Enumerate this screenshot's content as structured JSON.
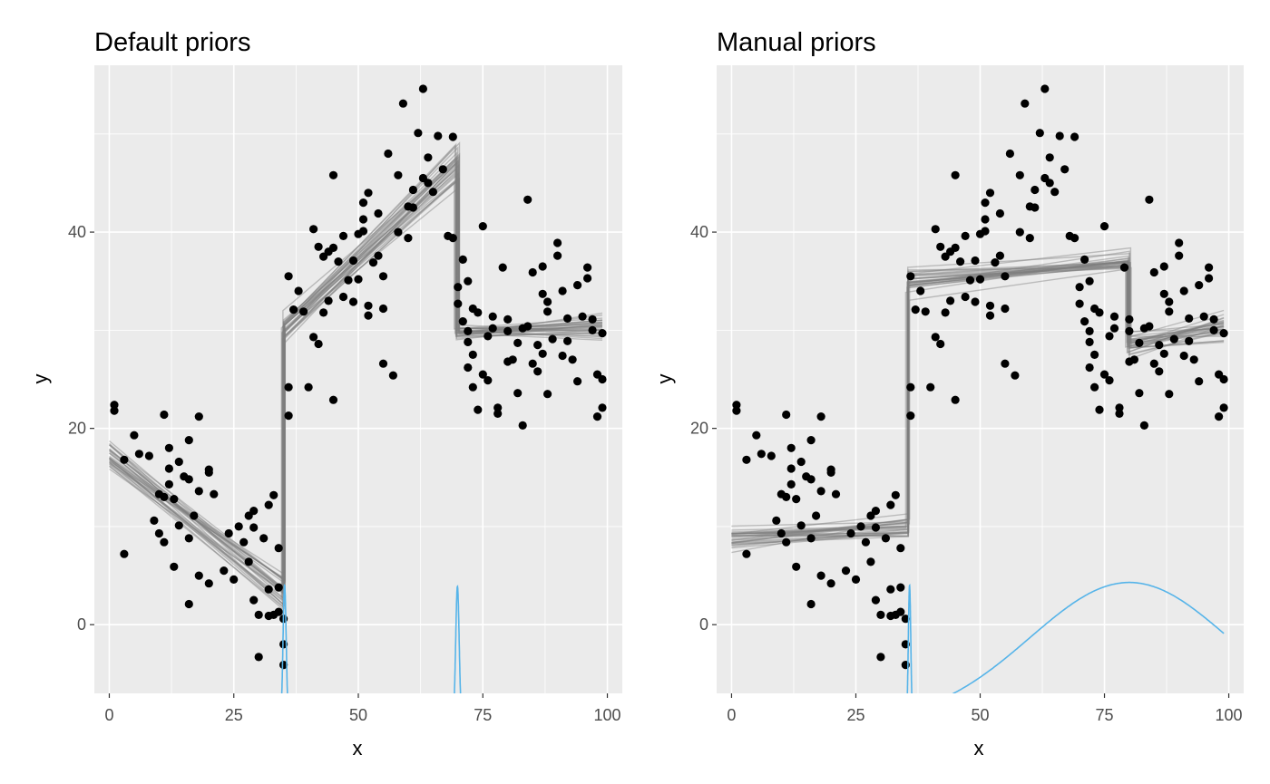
{
  "chart_data": [
    {
      "type": "scatter",
      "title": "Default priors",
      "xlabel": "x",
      "ylabel": "y",
      "xlim": [
        -3,
        103
      ],
      "ylim": [
        -7,
        57
      ],
      "x_ticks": [
        0,
        25,
        50,
        75,
        100
      ],
      "y_ticks": [
        0,
        20,
        40
      ],
      "x_tick_labels": [
        "0",
        "25",
        "50",
        "75",
        "100"
      ],
      "y_tick_labels": [
        "0",
        "20",
        "40"
      ],
      "grid": true,
      "colors": {
        "panel_bg": "#EBEBEB",
        "grid": "#FFFFFF",
        "points": "#000000",
        "fits": "#7F7F7F",
        "density": "#56B4E9"
      },
      "points": [
        [
          1,
          22.4
        ],
        [
          1,
          21.8
        ],
        [
          3,
          16.8
        ],
        [
          3,
          7.2
        ],
        [
          5,
          19.3
        ],
        [
          6,
          17.4
        ],
        [
          8,
          17.2
        ],
        [
          9,
          10.6
        ],
        [
          10,
          9.3
        ],
        [
          10,
          13.3
        ],
        [
          11,
          21.4
        ],
        [
          11,
          8.4
        ],
        [
          11,
          13.0
        ],
        [
          12,
          15.9
        ],
        [
          12,
          18.0
        ],
        [
          12,
          14.3
        ],
        [
          13,
          5.9
        ],
        [
          13,
          12.8
        ],
        [
          14,
          16.6
        ],
        [
          14,
          10.1
        ],
        [
          15,
          15.1
        ],
        [
          16,
          14.8
        ],
        [
          16,
          18.8
        ],
        [
          16,
          8.8
        ],
        [
          16,
          2.1
        ],
        [
          17,
          11.1
        ],
        [
          18,
          5.0
        ],
        [
          18,
          21.2
        ],
        [
          18,
          13.6
        ],
        [
          20,
          15.8
        ],
        [
          20,
          15.5
        ],
        [
          20,
          4.2
        ],
        [
          21,
          13.3
        ],
        [
          23,
          5.5
        ],
        [
          24,
          9.3
        ],
        [
          25,
          4.6
        ],
        [
          26,
          10.0
        ],
        [
          27,
          8.4
        ],
        [
          28,
          6.4
        ],
        [
          28,
          11.1
        ],
        [
          29,
          9.9
        ],
        [
          29,
          11.6
        ],
        [
          29,
          2.5
        ],
        [
          30,
          -3.3
        ],
        [
          30,
          1.0
        ],
        [
          31,
          8.8
        ],
        [
          32,
          12.2
        ],
        [
          32,
          0.9
        ],
        [
          32,
          3.6
        ],
        [
          33,
          13.2
        ],
        [
          33,
          1.0
        ],
        [
          34,
          7.8
        ],
        [
          34,
          3.8
        ],
        [
          34,
          1.3
        ],
        [
          35,
          -2.0
        ],
        [
          35,
          -4.1
        ],
        [
          35,
          0.6
        ],
        [
          36,
          24.2
        ],
        [
          36,
          21.3
        ],
        [
          36,
          35.5
        ],
        [
          37,
          32.1
        ],
        [
          38,
          34.0
        ],
        [
          39,
          31.9
        ],
        [
          40,
          24.2
        ],
        [
          41,
          29.3
        ],
        [
          41,
          40.3
        ],
        [
          42,
          28.6
        ],
        [
          42,
          38.5
        ],
        [
          43,
          31.8
        ],
        [
          43,
          37.5
        ],
        [
          44,
          38.0
        ],
        [
          44,
          33.0
        ],
        [
          45,
          45.8
        ],
        [
          45,
          22.9
        ],
        [
          45,
          38.4
        ],
        [
          46,
          37.0
        ],
        [
          47,
          39.6
        ],
        [
          47,
          33.4
        ],
        [
          48,
          35.1
        ],
        [
          49,
          32.9
        ],
        [
          49,
          37.1
        ],
        [
          50,
          35.2
        ],
        [
          50,
          39.8
        ],
        [
          51,
          41.3
        ],
        [
          51,
          43.0
        ],
        [
          51,
          40.1
        ],
        [
          52,
          44.0
        ],
        [
          52,
          32.5
        ],
        [
          52,
          31.5
        ],
        [
          53,
          36.9
        ],
        [
          54,
          37.6
        ],
        [
          54,
          41.9
        ],
        [
          55,
          35.5
        ],
        [
          55,
          32.2
        ],
        [
          55,
          26.6
        ],
        [
          56,
          48.0
        ],
        [
          57,
          25.4
        ],
        [
          58,
          40.0
        ],
        [
          58,
          45.8
        ],
        [
          59,
          53.1
        ],
        [
          60,
          42.6
        ],
        [
          60,
          39.4
        ],
        [
          61,
          44.3
        ],
        [
          61,
          42.5
        ],
        [
          62,
          50.1
        ],
        [
          63,
          54.6
        ],
        [
          63,
          45.5
        ],
        [
          64,
          45.0
        ],
        [
          64,
          47.6
        ],
        [
          65,
          44.1
        ],
        [
          66,
          49.8
        ],
        [
          67,
          46.4
        ],
        [
          68,
          39.6
        ],
        [
          69,
          39.4
        ],
        [
          69,
          49.7
        ],
        [
          70,
          34.4
        ],
        [
          70,
          32.7
        ],
        [
          71,
          37.2
        ],
        [
          71,
          30.9
        ],
        [
          72,
          35.0
        ],
        [
          72,
          26.2
        ],
        [
          72,
          29.9
        ],
        [
          72,
          28.8
        ],
        [
          73,
          32.2
        ],
        [
          73,
          24.2
        ],
        [
          73,
          27.5
        ],
        [
          74,
          21.9
        ],
        [
          74,
          31.8
        ],
        [
          75,
          40.6
        ],
        [
          75,
          25.5
        ],
        [
          76,
          24.9
        ],
        [
          76,
          29.4
        ],
        [
          77,
          30.2
        ],
        [
          77,
          31.4
        ],
        [
          78,
          22.1
        ],
        [
          78,
          21.5
        ],
        [
          79,
          36.4
        ],
        [
          80,
          26.8
        ],
        [
          80,
          29.9
        ],
        [
          80,
          31.1
        ],
        [
          81,
          27.0
        ],
        [
          82,
          28.7
        ],
        [
          82,
          23.6
        ],
        [
          83,
          30.2
        ],
        [
          83,
          20.3
        ],
        [
          84,
          30.4
        ],
        [
          84,
          43.3
        ],
        [
          85,
          35.9
        ],
        [
          85,
          26.6
        ],
        [
          86,
          28.5
        ],
        [
          86,
          25.8
        ],
        [
          87,
          27.6
        ],
        [
          87,
          33.7
        ],
        [
          87,
          36.5
        ],
        [
          88,
          32.9
        ],
        [
          88,
          31.9
        ],
        [
          88,
          23.5
        ],
        [
          89,
          29.1
        ],
        [
          90,
          38.9
        ],
        [
          90,
          37.6
        ],
        [
          91,
          27.4
        ],
        [
          91,
          34.0
        ],
        [
          92,
          28.9
        ],
        [
          92,
          31.2
        ],
        [
          93,
          27.0
        ],
        [
          94,
          34.6
        ],
        [
          94,
          24.8
        ],
        [
          95,
          31.4
        ],
        [
          96,
          35.3
        ],
        [
          96,
          36.4
        ],
        [
          97,
          30.0
        ],
        [
          97,
          31.1
        ],
        [
          98,
          25.5
        ],
        [
          98,
          21.2
        ],
        [
          99,
          25.0
        ],
        [
          99,
          22.1
        ],
        [
          99,
          29.7
        ]
      ],
      "fits": {
        "draws": 30,
        "segments": [
          {
            "x": [
              0,
              35
            ],
            "y": [
              17.2,
              3.6
            ],
            "spread": [
              1.5,
              2.0
            ]
          },
          {
            "x": [
              35,
              70
            ],
            "y": [
              30.0,
              46.8
            ],
            "spread": [
              1.6,
              2.4
            ]
          },
          {
            "x": [
              70,
              99
            ],
            "y": [
              29.7,
              30.2
            ],
            "spread": [
              0.8,
              1.6
            ]
          }
        ],
        "change_points": [
          {
            "center": 35.0,
            "width": 0.6
          },
          {
            "center": 69.9,
            "width": 0.8
          }
        ]
      },
      "densities": [
        {
          "center": 35.2,
          "sd": 0.32,
          "peak": 4.0
        },
        {
          "center": 69.9,
          "sd": 0.35,
          "peak": 3.9
        }
      ]
    },
    {
      "type": "scatter",
      "title": "Manual priors",
      "xlabel": "x",
      "ylabel": "y",
      "xlim": [
        -3,
        103
      ],
      "ylim": [
        -7,
        57
      ],
      "x_ticks": [
        0,
        25,
        50,
        75,
        100
      ],
      "y_ticks": [
        0,
        20,
        40
      ],
      "x_tick_labels": [
        "0",
        "25",
        "50",
        "75",
        "100"
      ],
      "y_tick_labels": [
        "0",
        "20",
        "40"
      ],
      "grid": true,
      "colors": {
        "panel_bg": "#EBEBEB",
        "grid": "#FFFFFF",
        "points": "#000000",
        "fits": "#7F7F7F",
        "density": "#56B4E9"
      },
      "points": "same-as-first",
      "fits": {
        "draws": 30,
        "segments": [
          {
            "x": [
              0,
              35.5
            ],
            "y": [
              8.8,
              9.8
            ],
            "spread": [
              1.1,
              1.1
            ]
          },
          {
            "x": [
              35.5,
              80
            ],
            "y": [
              35.1,
              37.0
            ],
            "spread": [
              1.2,
              1.0
            ]
          },
          {
            "x": [
              80,
              99
            ],
            "y": [
              28.8,
              30.4
            ],
            "spread": [
              1.2,
              1.4
            ]
          }
        ],
        "change_points": [
          {
            "center": 35.5,
            "width": 0.4
          },
          {
            "center": 79.8,
            "width": 0.8
          }
        ]
      },
      "densities": [
        {
          "center": 35.8,
          "sd": 0.25,
          "peak": 4.0
        },
        {
          "center": 80.0,
          "sd": 20.0,
          "peak": 4.3,
          "from": 38
        }
      ]
    }
  ]
}
